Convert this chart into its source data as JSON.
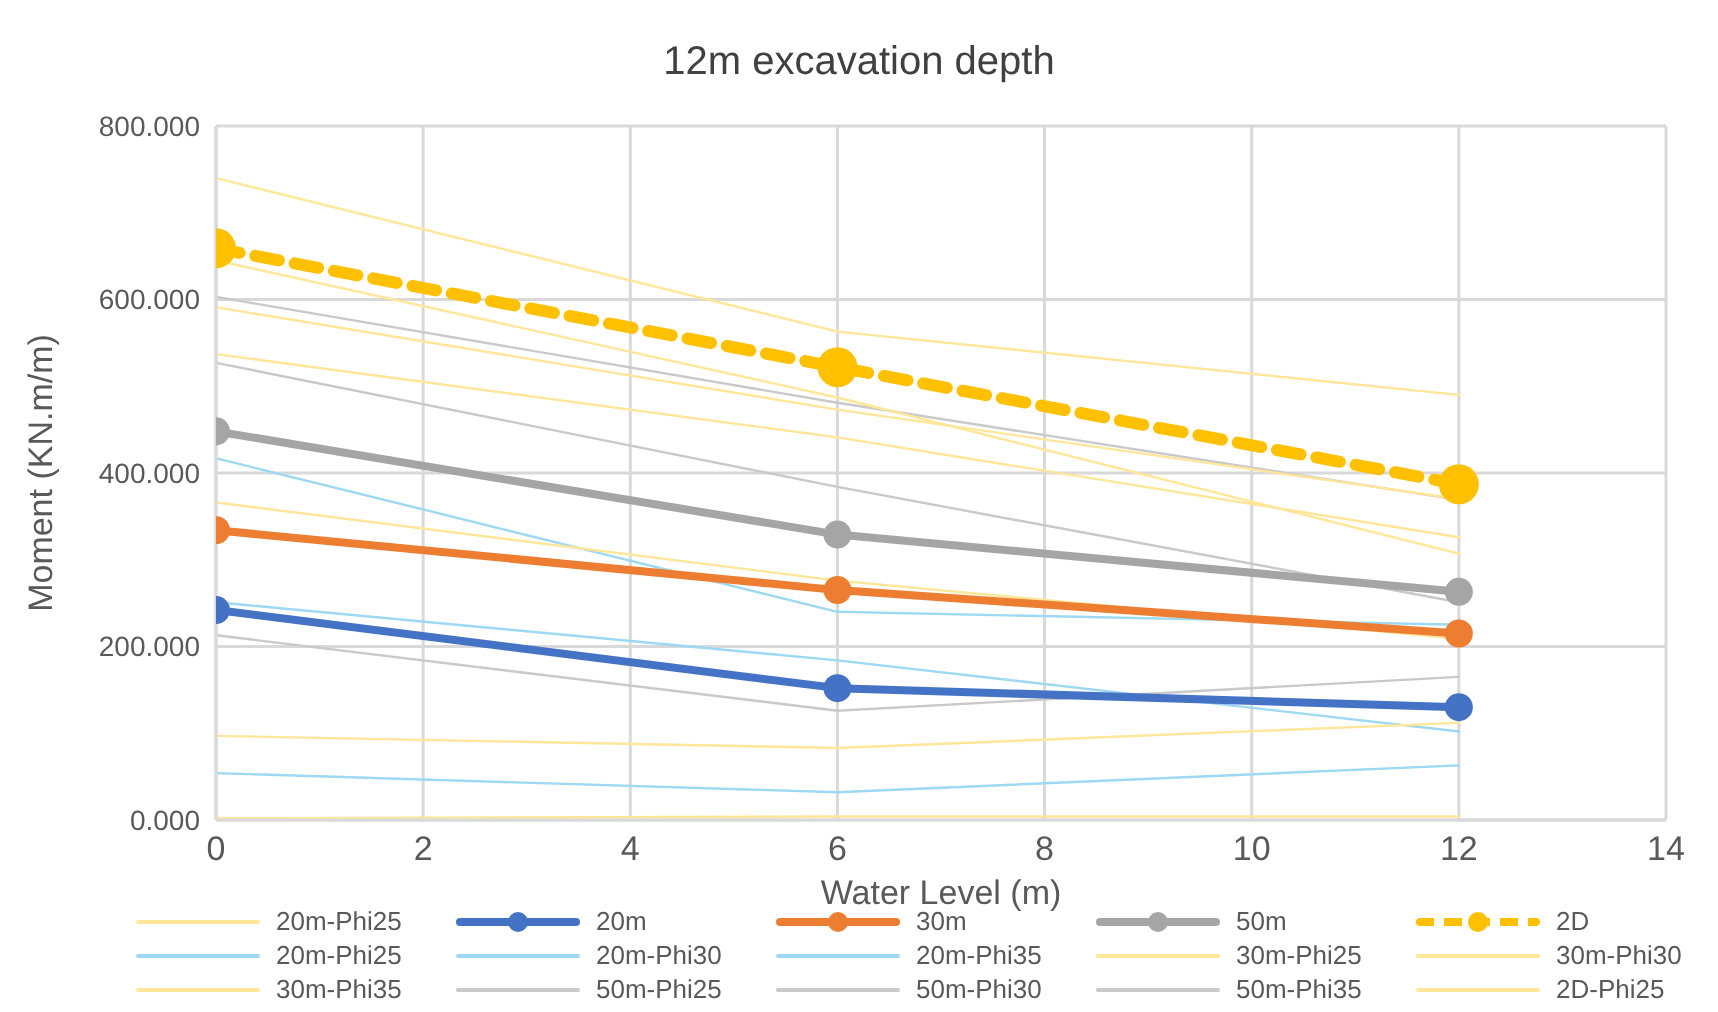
{
  "chart_data": {
    "type": "line",
    "title": "12m excavation depth",
    "xlabel": "Water Level (m)",
    "ylabel": "Moment (KN.m/m)",
    "x": [
      0,
      6,
      12
    ],
    "xlim": [
      0,
      14
    ],
    "xticks": [
      0,
      2,
      4,
      6,
      8,
      10,
      12,
      14
    ],
    "ylim": [
      0,
      800
    ],
    "yticks": [
      {
        "value": 0,
        "label": "0.000"
      },
      {
        "value": 200,
        "label": "200.000"
      },
      {
        "value": 400,
        "label": "400.000"
      },
      {
        "value": 600,
        "label": "600.000"
      },
      {
        "value": 800,
        "label": "800.000"
      }
    ],
    "grid": true,
    "legend": "bottom",
    "series": [
      {
        "name": "20m-Phi25",
        "color": "#ffe699",
        "values": [
          537,
          441,
          326
        ],
        "marker": "none"
      },
      {
        "name": "20m",
        "color": "#4472c4",
        "values": [
          242,
          152,
          130
        ],
        "marker": "circle"
      },
      {
        "name": "30m",
        "color": "#ed7d31",
        "values": [
          334,
          265,
          215
        ],
        "marker": "circle"
      },
      {
        "name": "50m",
        "color": "#a5a5a5",
        "values": [
          448,
          329,
          263
        ],
        "marker": "circle"
      },
      {
        "name": "2D",
        "color": "#ffc000",
        "values": [
          659,
          522,
          387
        ],
        "marker": "circle",
        "line_style": "dashed"
      },
      {
        "name": "20m-Phi25",
        "color": "#9dd9f3",
        "values": [
          417,
          240,
          225
        ],
        "marker": "none"
      },
      {
        "name": "20m-Phi30",
        "color": "#9dd9f3",
        "values": [
          251,
          184,
          102
        ],
        "marker": "none"
      },
      {
        "name": "20m-Phi35",
        "color": "#9dd9f3",
        "values": [
          54,
          32,
          63
        ],
        "marker": "none"
      },
      {
        "name": "30m-Phi25",
        "color": "#ffe699",
        "values": [
          366,
          276,
          209
        ],
        "marker": "none"
      },
      {
        "name": "30m-Phi30",
        "color": "#ffe699",
        "values": [
          97,
          83,
          112
        ],
        "marker": "none"
      },
      {
        "name": "30m-Phi35",
        "color": "#ffe699",
        "values": [
          2,
          4,
          4
        ],
        "marker": "none"
      },
      {
        "name": "50m-Phi25",
        "color": "#c9c9c9",
        "values": [
          603,
          481,
          369
        ],
        "marker": "none"
      },
      {
        "name": "50m-Phi30",
        "color": "#c9c9c9",
        "values": [
          527,
          384,
          251
        ],
        "marker": "none"
      },
      {
        "name": "50m-Phi35",
        "color": "#c9c9c9",
        "values": [
          213,
          126,
          165
        ],
        "marker": "none"
      },
      {
        "name": "2D-Phi25",
        "color": "#ffe699",
        "values": [
          740,
          563,
          490
        ],
        "marker": "none"
      },
      {
        "color": "#ffe699",
        "values": [
          645,
          487,
          307
        ],
        "marker": "none"
      },
      {
        "color": "#ffe699",
        "values": [
          591,
          473,
          370
        ],
        "marker": "none"
      }
    ]
  }
}
